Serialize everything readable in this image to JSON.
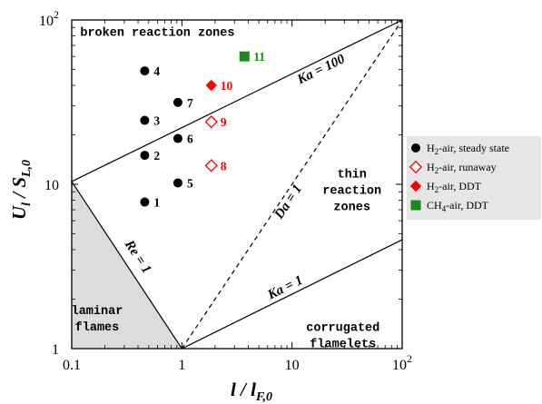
{
  "chart_data": {
    "type": "scatter",
    "xscale": "log",
    "yscale": "log",
    "xlim": [
      0.1,
      100
    ],
    "ylim": [
      1,
      100
    ],
    "xlabel": {
      "main": "l / l",
      "sub": "F,0"
    },
    "ylabel": {
      "main": "U",
      "sub1": "l",
      "mid": " / S",
      "sub2": "L,0"
    },
    "x_ticks": [
      {
        "value": 0.1,
        "label": "0.1"
      },
      {
        "value": 1,
        "label": "1"
      },
      {
        "value": 10,
        "label": "10"
      },
      {
        "value": 100,
        "label": "10",
        "sup": "2"
      }
    ],
    "y_ticks": [
      {
        "value": 1,
        "label": "1"
      },
      {
        "value": 10,
        "label": "10"
      },
      {
        "value": 100,
        "label": "10",
        "sup": "2"
      }
    ],
    "lines": [
      {
        "name": "Ka = 100",
        "label": "Ka = 100",
        "style": "solid",
        "from": [
          0.1,
          10.4
        ],
        "to": [
          100,
          100
        ]
      },
      {
        "name": "Ka = 1",
        "label": "Ka = 1",
        "style": "solid",
        "from": [
          1,
          1
        ],
        "to": [
          100,
          4.6
        ]
      },
      {
        "name": "Da = 1",
        "label": "Da = 1",
        "style": "dashed",
        "from": [
          1,
          1
        ],
        "to": [
          100,
          100
        ]
      },
      {
        "name": "Re = 1",
        "label": "Re = 1",
        "style": "solid",
        "from": [
          0.1,
          10.4
        ],
        "to": [
          1,
          1
        ]
      }
    ],
    "regions": [
      {
        "lines": [
          "broken reaction zones"
        ],
        "at": [
          0.6,
          80
        ]
      },
      {
        "lines": [
          "thin",
          "reaction",
          "zones"
        ],
        "at": [
          35,
          11
        ]
      },
      {
        "lines": [
          "corrugated",
          "flamelets"
        ],
        "at": [
          29,
          1.28
        ]
      },
      {
        "lines": [
          "laminar",
          "flames"
        ],
        "at": [
          0.17,
          1.62
        ]
      }
    ],
    "laminar_region": [
      [
        0.1,
        1
      ],
      [
        0.1,
        10.4
      ],
      [
        1,
        1
      ]
    ],
    "series": [
      {
        "name": "H₂-air, steady state",
        "legend": {
          "base": "H",
          "sub": "2",
          "rest": "-air, steady state"
        },
        "marker": "circle",
        "color": "#000000",
        "points": [
          {
            "id": "1",
            "x": 0.46,
            "y": 7.8
          },
          {
            "id": "2",
            "x": 0.46,
            "y": 15
          },
          {
            "id": "3",
            "x": 0.46,
            "y": 24.5
          },
          {
            "id": "4",
            "x": 0.46,
            "y": 49
          },
          {
            "id": "5",
            "x": 0.92,
            "y": 10.2
          },
          {
            "id": "6",
            "x": 0.92,
            "y": 19
          },
          {
            "id": "7",
            "x": 0.92,
            "y": 31.5
          }
        ]
      },
      {
        "name": "H₂-air, runaway",
        "legend": {
          "base": "H",
          "sub": "2",
          "rest": "-air, runaway"
        },
        "marker": "diamond-open",
        "color": "#ff0000",
        "points": [
          {
            "id": "8",
            "x": 1.85,
            "y": 13
          },
          {
            "id": "9",
            "x": 1.85,
            "y": 24
          }
        ]
      },
      {
        "name": "H₂-air, DDT",
        "legend": {
          "base": "H",
          "sub": "2",
          "rest": "-air, DDT"
        },
        "marker": "diamond",
        "color": "#ff0000",
        "points": [
          {
            "id": "10",
            "x": 1.85,
            "y": 40
          }
        ]
      },
      {
        "name": "CH₄-air, DDT",
        "legend": {
          "base": "CH",
          "sub": "4",
          "rest": "-air, DDT"
        },
        "marker": "square",
        "color": "#1a8a1a",
        "points": [
          {
            "id": "11",
            "x": 3.7,
            "y": 60
          }
        ]
      }
    ],
    "legend": {
      "position": "right"
    },
    "grid": false,
    "colors": {
      "laminar_fill": "#dcdcdc",
      "legend_bg": "#e6e6e6"
    }
  }
}
